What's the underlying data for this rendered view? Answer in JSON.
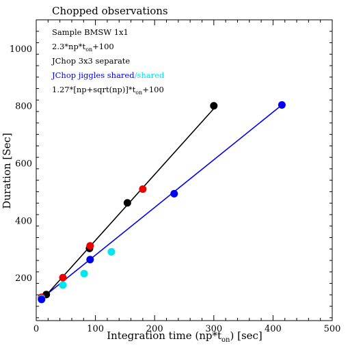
{
  "chart_data": {
    "type": "scatter",
    "title": "Chopped observations",
    "xlabel": "Integration time (np*t",
    "xlabel_sub": "on",
    "xlabel_tail": ") [sec]",
    "ylabel": "Duration [Sec]",
    "xlim": [
      0,
      500
    ],
    "ylim": [
      50,
      1100
    ],
    "x_ticks": [
      0,
      100,
      200,
      300,
      400,
      500
    ],
    "y_ticks": [
      200,
      400,
      600,
      800,
      1000
    ],
    "grid": false,
    "legend": {
      "placement": "top-left",
      "entries": [
        {
          "text": "Sample BMSW 1x1",
          "color": "#000000"
        },
        {
          "text_pre": "2.3*np*t",
          "text_sub": "on",
          "text_post": "+100",
          "color": "#000000"
        },
        {
          "text": "JChop 3x3 separate",
          "color": "#ee0000"
        },
        {
          "text_a": "JChop jiggles shared",
          "color_a": "#0000ee",
          "text_b": "/shared",
          "color_b": "#00e5ee"
        },
        {
          "text_pre": "1.27*[np+sqrt(np)]*t",
          "text_sub": "on",
          "text_post": "+100",
          "color": "#0000ee"
        }
      ]
    },
    "series": [
      {
        "color": "#000000",
        "marker": "dot",
        "points": [
          [
            9,
            131
          ],
          [
            17,
            141
          ],
          [
            90,
            302
          ],
          [
            154,
            461
          ],
          [
            300,
            800
          ]
        ]
      },
      {
        "color": "#ee0000",
        "marker": "dot",
        "points": [
          [
            9,
            131
          ],
          [
            45,
            200
          ],
          [
            91,
            311
          ],
          [
            180,
            509
          ]
        ]
      },
      {
        "color": "#00e5ee",
        "marker": "dot",
        "points": [
          [
            9,
            127
          ],
          [
            45,
            174
          ],
          [
            81,
            214
          ],
          [
            127,
            290
          ]
        ]
      },
      {
        "color": "#0000ee",
        "marker": "dot",
        "points": [
          [
            9,
            124
          ],
          [
            91,
            263
          ],
          [
            233,
            493
          ],
          [
            415,
            803
          ]
        ]
      }
    ],
    "lines": [
      {
        "color": "#000000",
        "points": [
          [
            9,
            120.7
          ],
          [
            300,
            790
          ]
        ]
      },
      {
        "color": "#0000ee",
        "points": [
          [
            9,
            127
          ],
          [
            415,
            803
          ]
        ]
      }
    ]
  }
}
